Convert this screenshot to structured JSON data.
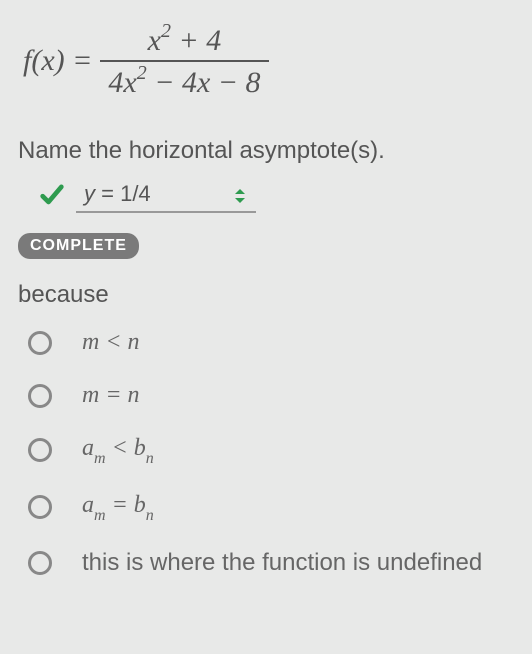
{
  "equation": {
    "lhs": "f(x) =",
    "numerator_html": "x<span class='sup'>2</span> + 4",
    "denominator_html": "4x<span class='sup'>2</span> − 4x − 8"
  },
  "prompt": "Name the horizontal asymptote(s).",
  "answer": {
    "var": "y",
    "eq": " = ",
    "value": "1/4",
    "check_color": "#2e9b4f",
    "arrow_color": "#2e9b4f"
  },
  "badge": "COMPLETE",
  "because_label": "because",
  "options": [
    {
      "html": "m < n",
      "italic": true
    },
    {
      "html": "m = n",
      "italic": true
    },
    {
      "html": "a<span class='sub'>m</span> < b<span class='sub'>n</span>",
      "italic": true
    },
    {
      "html": "a<span class='sub'>m</span> = b<span class='sub'>n</span>",
      "italic": true
    },
    {
      "html": "this is where the function is undefined",
      "italic": false
    }
  ],
  "colors": {
    "background": "#e8e9e8",
    "text": "#555",
    "badge_bg": "#7a7a7a",
    "badge_fg": "#ffffff",
    "radio_border": "#888"
  }
}
